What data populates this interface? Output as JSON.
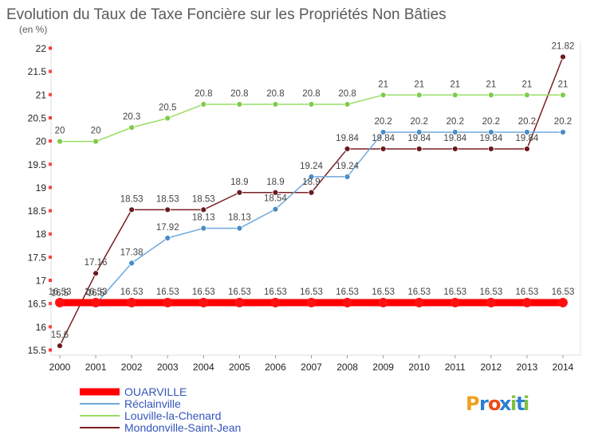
{
  "chart_data": {
    "type": "line",
    "title": "Evolution du Taux de Taxe Foncière sur les Propriétés Non Bâties",
    "subtitle": "(en %)",
    "xlabel": "",
    "ylabel": "(en %)",
    "x": [
      "2000",
      "2001",
      "2002",
      "2003",
      "2004",
      "2005",
      "2006",
      "2007",
      "2008",
      "2009",
      "2010",
      "2011",
      "2012",
      "2013",
      "2014"
    ],
    "ylim": [
      15.5,
      22
    ],
    "yticks": [
      "15.5",
      "16",
      "16.5",
      "17",
      "17.5",
      "18",
      "18.5",
      "19",
      "19.5",
      "20",
      "20.5",
      "21",
      "21.5",
      "22"
    ],
    "grid": false,
    "legend_position": "bottom-left",
    "series": [
      {
        "name": "Mondonville-Saint-Jean",
        "color": "#7a1f24",
        "marker_color": "#6b1a1f",
        "values": [
          15.6,
          17.16,
          18.53,
          18.53,
          18.53,
          18.9,
          18.9,
          18.9,
          19.84,
          19.84,
          19.84,
          19.84,
          19.84,
          19.84,
          21.82
        ],
        "labels": [
          "15.6",
          "17.16",
          "18.53",
          "18.53",
          "18.53",
          "18.9",
          "18.9",
          "18.9",
          "19.84",
          "19.84",
          "19.84",
          "19.84",
          "19.84",
          "19.84",
          "21.82"
        ]
      },
      {
        "name": "Louville-la-Chenard",
        "color": "#99dd66",
        "marker_color": "#7fcc4a",
        "values": [
          20,
          20,
          20.3,
          20.5,
          20.8,
          20.8,
          20.8,
          20.8,
          20.8,
          21,
          21,
          21,
          21,
          21,
          21
        ],
        "labels": [
          "20",
          "20",
          "20.3",
          "20.5",
          "20.8",
          "20.8",
          "20.8",
          "20.8",
          "20.8",
          "21",
          "21",
          "21",
          "21",
          "21",
          "21"
        ]
      },
      {
        "name": "Réclainville",
        "color": "#6fa8dc",
        "marker_color": "#4a8cc8",
        "values": [
          16.5,
          16.5,
          17.38,
          17.92,
          18.13,
          18.13,
          18.54,
          19.24,
          19.24,
          20.2,
          20.2,
          20.2,
          20.2,
          20.2,
          20.2
        ],
        "labels": [
          "16.5",
          "16.5",
          "17.38",
          "17.92",
          "18.13",
          "18.13",
          "18.54",
          "19.24",
          "19.24",
          "20.2",
          "20.2",
          "20.2",
          "20.2",
          "20.2",
          "20.2"
        ]
      },
      {
        "name": "OUARVILLE",
        "color": "#ff0000",
        "marker_color": "#ff1111",
        "thick": true,
        "values": [
          16.53,
          16.53,
          16.53,
          16.53,
          16.53,
          16.53,
          16.53,
          16.53,
          16.53,
          16.53,
          16.53,
          16.53,
          16.53,
          16.53,
          16.53
        ],
        "labels": [
          "16.53",
          "16.53",
          "16.53",
          "16.53",
          "16.53",
          "16.53",
          "16.53",
          "16.53",
          "16.53",
          "16.53",
          "16.53",
          "16.53",
          "16.53",
          "16.53",
          "16.53"
        ]
      }
    ],
    "legend": [
      "OUARVILLE",
      "Réclainville",
      "Louville-la-Chenard",
      "Mondonville-Saint-Jean"
    ],
    "legend_colors": [
      "#ff0000",
      "#6fa8dc",
      "#99dd66",
      "#7a1f24"
    ]
  },
  "brand": {
    "name": "Proxiti",
    "letters": [
      "P",
      "r",
      "o",
      "x",
      "i",
      "t",
      "i"
    ],
    "colors": [
      "#f0a020",
      "#2a7fd4",
      "#e94c1a",
      "#2a7fd4",
      "#7fbf3f",
      "#2a7fd4",
      "#7fbf3f"
    ]
  }
}
